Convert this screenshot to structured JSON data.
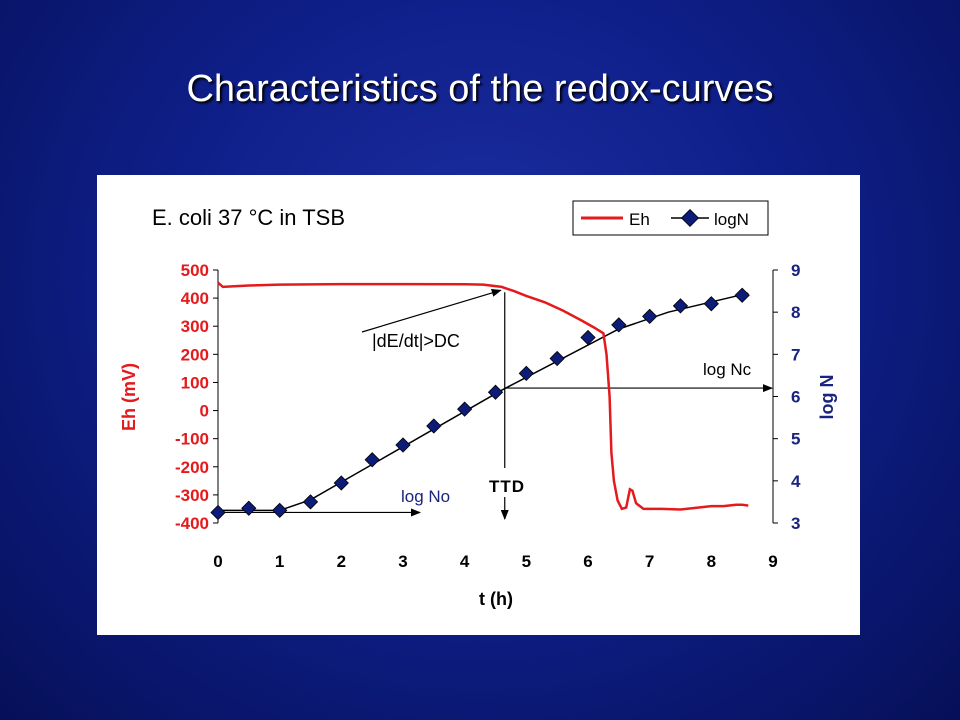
{
  "slide": {
    "title": "Characteristics of the redox-curves"
  },
  "colors": {
    "background": "#0f1f8a",
    "eh": "#e41a1c",
    "logn_marker": "#0c1c78",
    "logn_line": "#000000",
    "axis_left": "#e41a1c",
    "axis_right": "#1a237e"
  },
  "chart_data": {
    "type": "line",
    "title": "E. coli 37 °C in TSB",
    "xlabel": "t (h)",
    "ylabel_left": "Eh (mV)",
    "ylabel_right": "log N",
    "xlim": [
      0,
      9
    ],
    "ylim_left": [
      -400,
      500
    ],
    "ylim_right": [
      3,
      9
    ],
    "x_ticks": [
      "0",
      "1",
      "2",
      "3",
      "4",
      "5",
      "6",
      "7",
      "8",
      "9"
    ],
    "y_ticks_left": [
      "500",
      "400",
      "300",
      "200",
      "100",
      "0",
      "-100",
      "-200",
      "-300",
      "-400"
    ],
    "y_ticks_right": [
      "9",
      "8",
      "7",
      "6",
      "5",
      "4",
      "3"
    ],
    "grid": false,
    "legend_position": "top-right",
    "series": [
      {
        "name": "Eh",
        "axis": "left",
        "x": [
          0,
          0.08,
          0.5,
          1,
          2,
          3,
          4,
          4.3,
          4.6,
          4.8,
          5.0,
          5.3,
          5.6,
          5.9,
          6.1,
          6.25,
          6.3,
          6.35,
          6.38,
          6.42,
          6.48,
          6.55,
          6.62,
          6.68,
          6.72,
          6.78,
          6.9,
          7.0,
          7.2,
          7.5,
          7.8,
          8.0,
          8.2,
          8.4,
          8.5,
          8.6
        ],
        "y": [
          455,
          440,
          445,
          448,
          450,
          450,
          449,
          448,
          440,
          425,
          408,
          385,
          355,
          320,
          295,
          275,
          200,
          50,
          -150,
          -250,
          -320,
          -350,
          -345,
          -280,
          -285,
          -330,
          -350,
          -350,
          -350,
          -352,
          -345,
          -340,
          -340,
          -335,
          -335,
          -338
        ]
      },
      {
        "name": "logN",
        "axis": "right",
        "x": [
          0,
          0.5,
          1,
          1.5,
          2,
          2.5,
          3,
          3.5,
          4,
          4.5,
          5,
          5.5,
          6,
          6.5,
          7,
          7.5,
          8,
          8.5
        ],
        "y": [
          3.25,
          3.35,
          3.3,
          3.5,
          3.95,
          4.5,
          4.85,
          5.3,
          5.7,
          6.1,
          6.55,
          6.9,
          7.4,
          7.7,
          7.9,
          8.15,
          8.2,
          8.4
        ],
        "fit_x": [
          0,
          1,
          1.5,
          4.6,
          6.5,
          7.3,
          8.6
        ],
        "fit_y": [
          3.3,
          3.3,
          3.55,
          6.15,
          7.6,
          8.0,
          8.45
        ]
      }
    ],
    "annotations": {
      "dedt": "|dE/dt|>DC",
      "ttd": "TTD",
      "log_no": "log No",
      "log_nc": "log Nc",
      "ttd_x": 4.65,
      "dedt_target": {
        "x": 4.65,
        "y": 435
      },
      "log_no_level": 3.25,
      "log_nc_level": 6.2
    }
  }
}
